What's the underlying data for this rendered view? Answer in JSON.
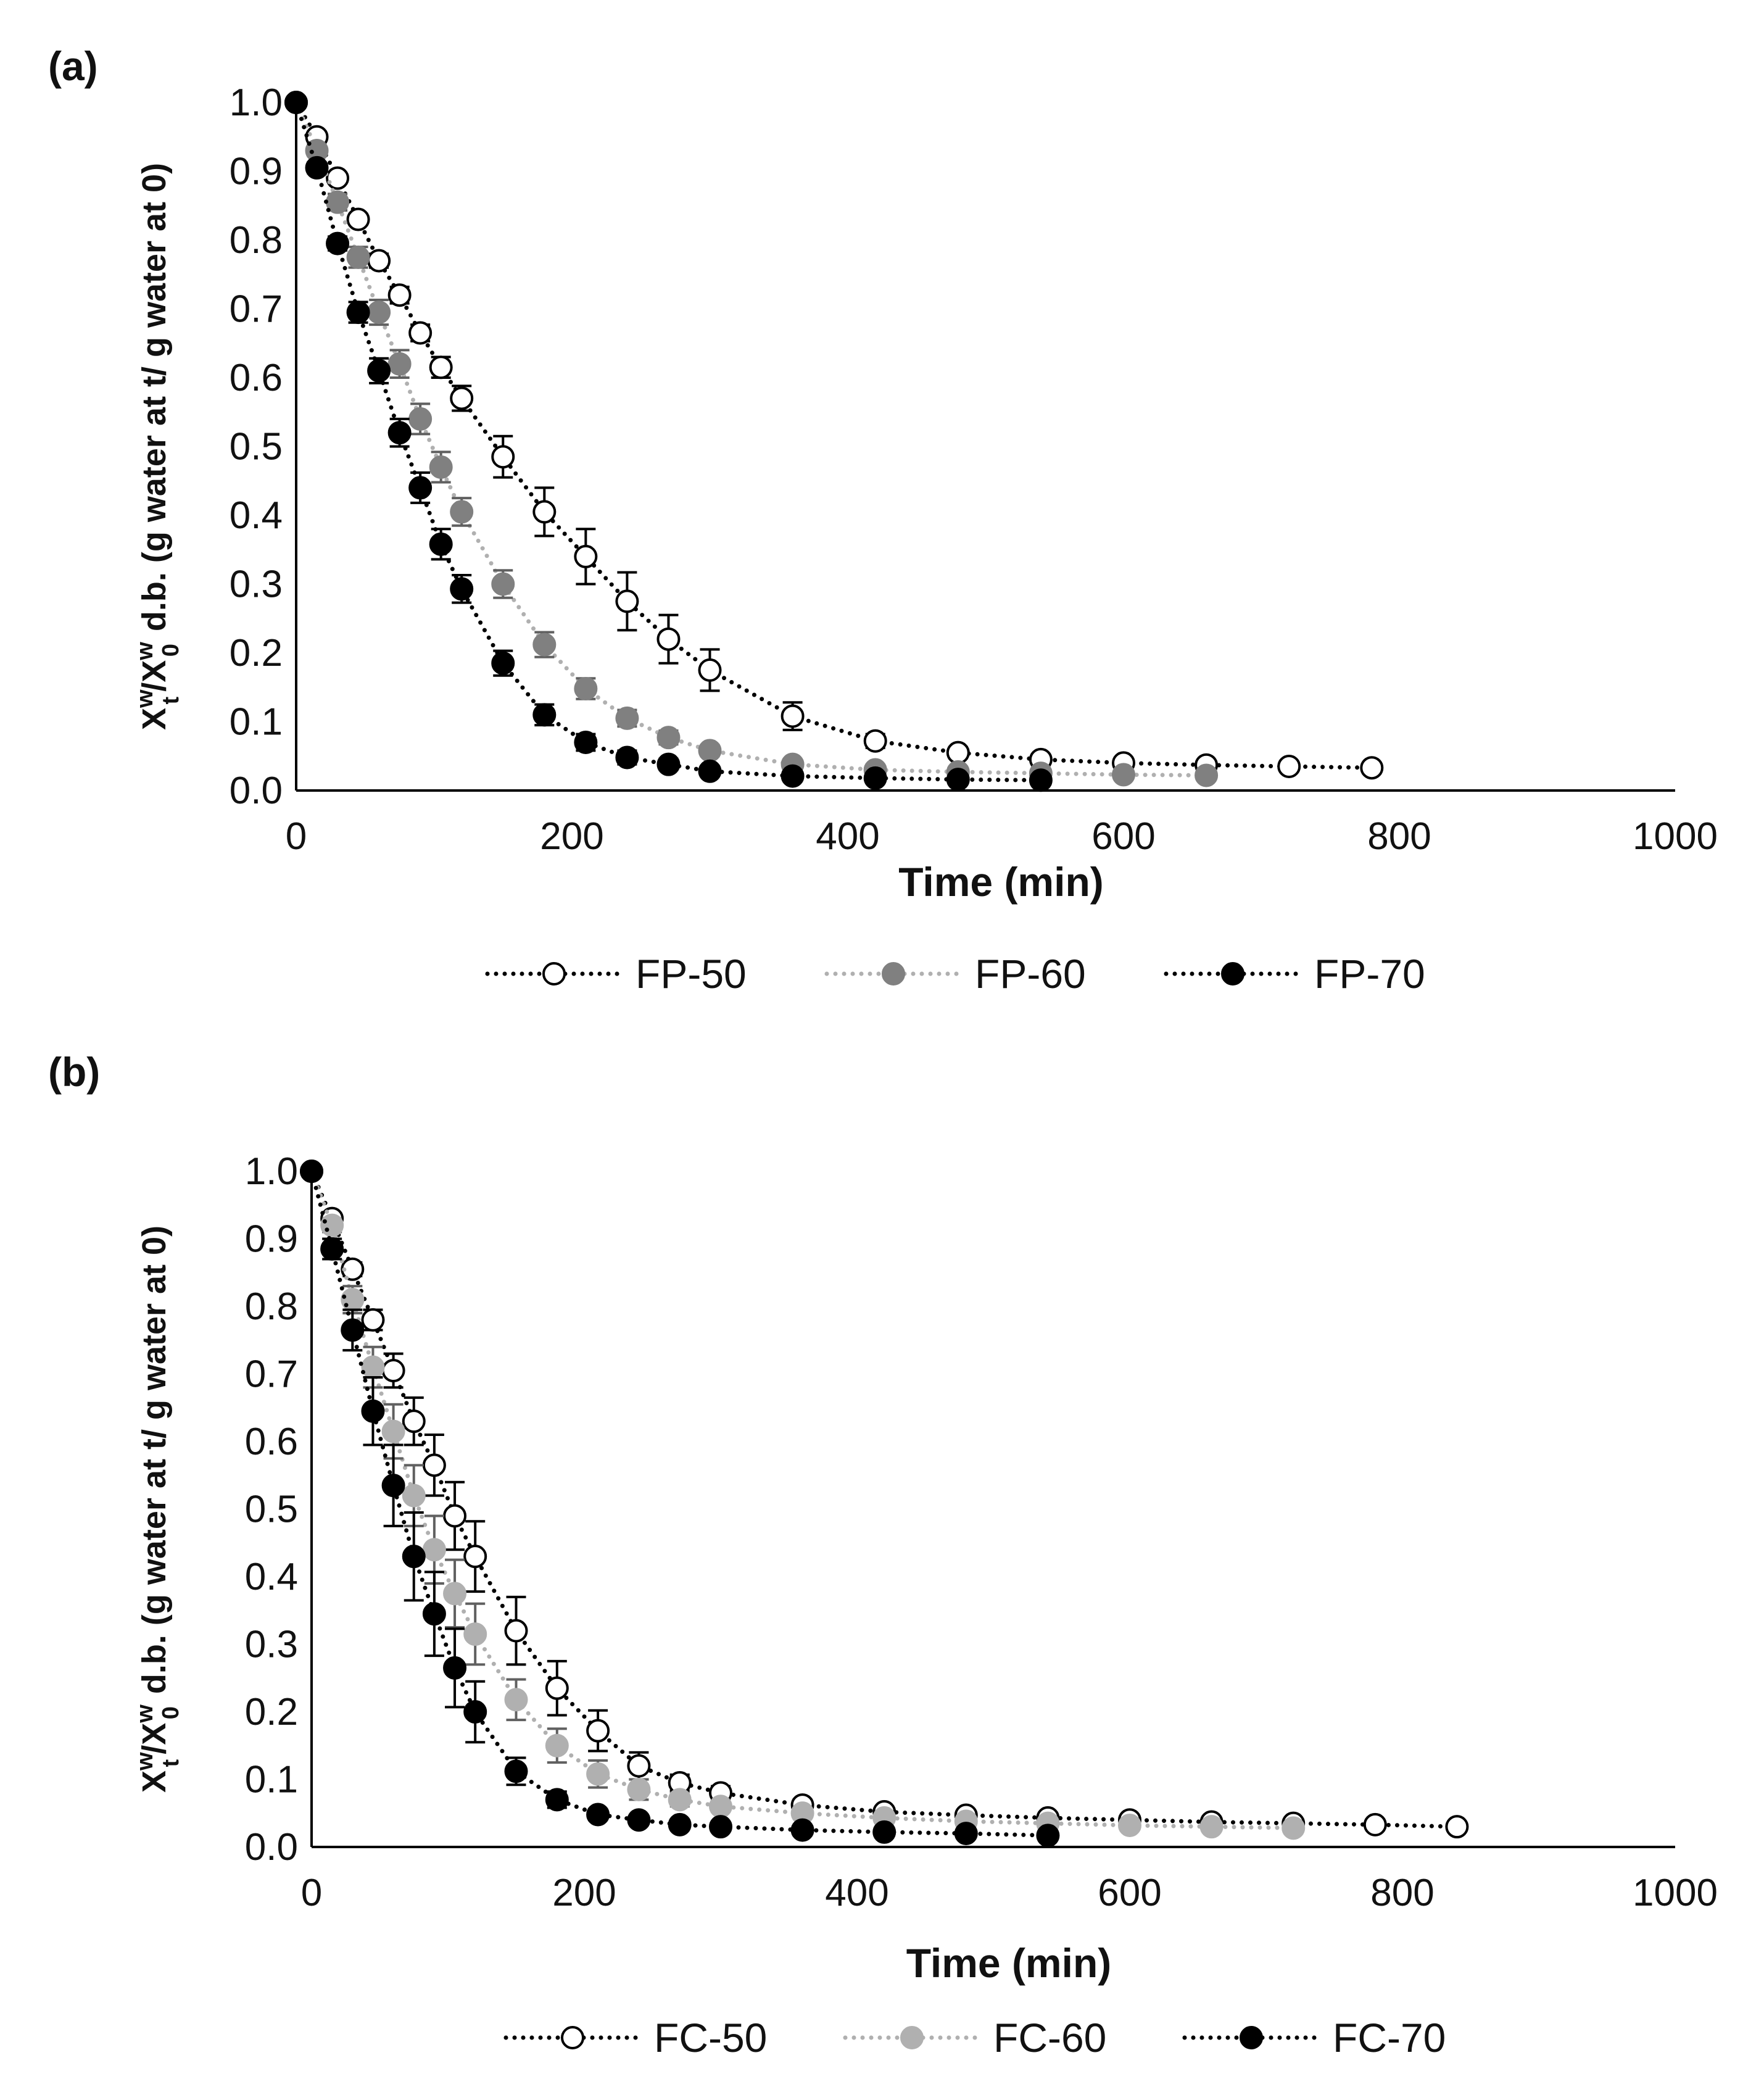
{
  "colors": {
    "white_marker": "#ffffff",
    "gray_dark": "#808080",
    "gray_light": "#b0b0b0",
    "black": "#000000",
    "axis": "#000000"
  },
  "chart_data": [
    {
      "id": "a",
      "type": "scatter",
      "panel_label": "(a)",
      "xlabel": "Time (min)",
      "ylabel": {
        "main": "X",
        "sup1": "w",
        "sub1": "t",
        "sep": "/X",
        "sup2": "w",
        "sub2": "0",
        "rest": "d.b. (g water at t/ g water at 0)"
      },
      "xlim": [
        0,
        1000
      ],
      "ylim": [
        0,
        1
      ],
      "x_ticks": [
        "0",
        "200",
        "400",
        "600",
        "800",
        "1000"
      ],
      "y_ticks": [
        "0.0",
        "0.1",
        "0.2",
        "0.3",
        "0.4",
        "0.5",
        "0.6",
        "0.7",
        "0.8",
        "0.9",
        "1.0"
      ],
      "legend_position": "bottom",
      "series": [
        {
          "name": "FP-50",
          "fill": "#ffffff",
          "stroke": "#000000",
          "line_color": "#000000",
          "error_color": "#000000",
          "x": [
            0,
            15,
            30,
            45,
            60,
            75,
            90,
            105,
            120,
            150,
            180,
            210,
            240,
            270,
            300,
            360,
            420,
            480,
            540,
            600,
            660,
            720,
            780
          ],
          "y": [
            1.0,
            0.95,
            0.89,
            0.83,
            0.77,
            0.72,
            0.665,
            0.615,
            0.57,
            0.485,
            0.405,
            0.34,
            0.275,
            0.22,
            0.175,
            0.108,
            0.072,
            0.055,
            0.045,
            0.04,
            0.037,
            0.035,
            0.033
          ],
          "err": [
            0,
            0.005,
            0.005,
            0.008,
            0.01,
            0.012,
            0.012,
            0.015,
            0.018,
            0.03,
            0.035,
            0.04,
            0.042,
            0.035,
            0.03,
            0.02,
            0.01,
            0.008,
            0.006,
            0.005,
            0.005,
            0.004,
            0.004
          ]
        },
        {
          "name": "FP-60",
          "fill": "#808080",
          "stroke": "#808080",
          "line_color": "#b0b0b0",
          "error_color": "#606060",
          "x": [
            0,
            15,
            30,
            45,
            60,
            75,
            90,
            105,
            120,
            150,
            180,
            210,
            240,
            270,
            300,
            360,
            420,
            480,
            540,
            600,
            660
          ],
          "y": [
            1.0,
            0.93,
            0.855,
            0.775,
            0.695,
            0.62,
            0.54,
            0.47,
            0.405,
            0.3,
            0.212,
            0.148,
            0.105,
            0.077,
            0.058,
            0.038,
            0.03,
            0.027,
            0.025,
            0.023,
            0.022
          ],
          "err": [
            0,
            0.008,
            0.012,
            0.015,
            0.018,
            0.02,
            0.022,
            0.022,
            0.02,
            0.02,
            0.018,
            0.015,
            0.012,
            0.01,
            0.008,
            0.005,
            0.004,
            0.004,
            0.003,
            0.003,
            0.003
          ]
        },
        {
          "name": "FP-70",
          "fill": "#000000",
          "stroke": "#000000",
          "line_color": "#000000",
          "error_color": "#000000",
          "x": [
            0,
            15,
            30,
            45,
            60,
            75,
            90,
            105,
            120,
            150,
            180,
            210,
            240,
            270,
            300,
            360,
            420,
            480,
            540
          ],
          "y": [
            1.0,
            0.905,
            0.795,
            0.695,
            0.61,
            0.52,
            0.44,
            0.358,
            0.293,
            0.185,
            0.11,
            0.07,
            0.048,
            0.038,
            0.028,
            0.021,
            0.018,
            0.016,
            0.015
          ],
          "err": [
            0,
            0.008,
            0.01,
            0.015,
            0.018,
            0.02,
            0.022,
            0.022,
            0.02,
            0.018,
            0.015,
            0.012,
            0.01,
            0.008,
            0.006,
            0.004,
            0.003,
            0.003,
            0.003
          ]
        }
      ]
    },
    {
      "id": "b",
      "type": "scatter",
      "panel_label": "(b)",
      "xlabel": "Time (min)",
      "ylabel": {
        "main": "X",
        "sup1": "w",
        "sub1": "t",
        "sep": "/X",
        "sup2": "w",
        "sub2": "0",
        "rest": "d.b. (g water at t/ g water at 0)"
      },
      "xlim": [
        0,
        1000
      ],
      "ylim": [
        0,
        1
      ],
      "x_ticks": [
        "0",
        "200",
        "400",
        "600",
        "800",
        "1000"
      ],
      "y_ticks": [
        "0.0",
        "0.1",
        "0.2",
        "0.3",
        "0.4",
        "0.5",
        "0.6",
        "0.7",
        "0.8",
        "0.9",
        "1.0"
      ],
      "legend_position": "bottom",
      "series": [
        {
          "name": "FC-50",
          "fill": "#ffffff",
          "stroke": "#000000",
          "line_color": "#000000",
          "error_color": "#000000",
          "x": [
            0,
            15,
            30,
            45,
            60,
            75,
            90,
            105,
            120,
            150,
            180,
            210,
            240,
            270,
            300,
            360,
            420,
            480,
            540,
            600,
            660,
            720,
            780,
            840
          ],
          "y": [
            1.0,
            0.93,
            0.855,
            0.78,
            0.705,
            0.63,
            0.565,
            0.49,
            0.43,
            0.32,
            0.235,
            0.172,
            0.12,
            0.095,
            0.08,
            0.062,
            0.052,
            0.047,
            0.043,
            0.04,
            0.037,
            0.035,
            0.033,
            0.03
          ],
          "err": [
            0,
            0.008,
            0.01,
            0.015,
            0.025,
            0.035,
            0.045,
            0.05,
            0.052,
            0.05,
            0.04,
            0.03,
            0.02,
            0.012,
            0.01,
            0.008,
            0.006,
            0.005,
            0.005,
            0.004,
            0.004,
            0.004,
            0.003,
            0.003
          ]
        },
        {
          "name": "FC-60",
          "fill": "#b0b0b0",
          "stroke": "#b0b0b0",
          "line_color": "#b0b0b0",
          "error_color": "#606060",
          "x": [
            0,
            15,
            30,
            45,
            60,
            75,
            90,
            105,
            120,
            150,
            180,
            210,
            240,
            270,
            300,
            360,
            420,
            480,
            540,
            600,
            660,
            720
          ],
          "y": [
            1.0,
            0.92,
            0.81,
            0.71,
            0.615,
            0.52,
            0.44,
            0.375,
            0.315,
            0.218,
            0.15,
            0.108,
            0.085,
            0.07,
            0.06,
            0.05,
            0.043,
            0.038,
            0.035,
            0.032,
            0.03,
            0.028
          ],
          "err": [
            0,
            0.01,
            0.02,
            0.03,
            0.04,
            0.045,
            0.05,
            0.05,
            0.045,
            0.03,
            0.025,
            0.02,
            0.015,
            0.01,
            0.008,
            0.006,
            0.005,
            0.004,
            0.004,
            0.003,
            0.003,
            0.003
          ]
        },
        {
          "name": "FC-70",
          "fill": "#000000",
          "stroke": "#000000",
          "line_color": "#000000",
          "error_color": "#000000",
          "x": [
            0,
            15,
            30,
            45,
            60,
            75,
            90,
            105,
            120,
            150,
            180,
            210,
            240,
            270,
            300,
            360,
            420,
            480,
            540
          ],
          "y": [
            1.0,
            0.885,
            0.765,
            0.645,
            0.535,
            0.43,
            0.345,
            0.265,
            0.2,
            0.112,
            0.07,
            0.048,
            0.04,
            0.033,
            0.03,
            0.025,
            0.022,
            0.02,
            0.017
          ],
          "err": [
            0,
            0.015,
            0.03,
            0.05,
            0.06,
            0.065,
            0.062,
            0.058,
            0.045,
            0.02,
            0.012,
            0.008,
            0.006,
            0.005,
            0.004,
            0.004,
            0.003,
            0.003,
            0.003
          ]
        }
      ]
    }
  ]
}
